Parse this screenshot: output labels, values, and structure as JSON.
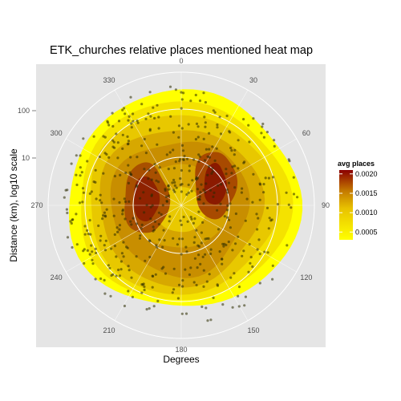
{
  "chart_data": {
    "type": "heatmap",
    "coordinate_system": "polar",
    "title": "ETK_churches relative places mentioned heat map",
    "xlabel": "Degrees",
    "ylabel": "Distance (km), log10 scale",
    "angle_ticks": [
      "0",
      "30",
      "60",
      "90",
      "120",
      "150",
      "180",
      "210",
      "240",
      "270",
      "300",
      "330"
    ],
    "radial_ticks": [
      "10",
      "100"
    ],
    "grid": true,
    "legend": {
      "title": "avg places",
      "position": "right",
      "range": [
        0.0003,
        0.0021
      ],
      "labels": [
        "0.0020",
        "0.0015",
        "0.0010",
        "0.0005"
      ],
      "values": [
        0.002,
        0.0015,
        0.001,
        0.0005
      ]
    },
    "colors": {
      "panel_background": "#e5e5e5",
      "grid": "#ffffff",
      "low": "#ffff00",
      "mid": "#d4a400",
      "high": "#8b0000",
      "points": "#2b2b00"
    }
  }
}
